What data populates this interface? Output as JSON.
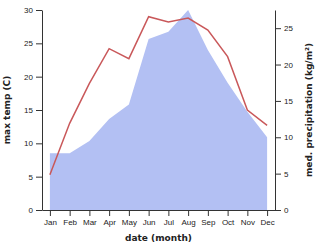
{
  "chart_data": {
    "type": "line",
    "x_label": "date (month)",
    "y_label": "max temp (C)",
    "y2_label": "med. precipitation (kg/m²)",
    "categories": [
      "Jan",
      "Feb",
      "Mar",
      "Apr",
      "May",
      "Jun",
      "Jul",
      "Aug",
      "Sep",
      "Oct",
      "Nov",
      "Dec"
    ],
    "series": [
      {
        "type": "area",
        "axis": "y2",
        "color": "#b3c0f3",
        "values": [
          7.8,
          7.8,
          9.5,
          12.5,
          14.5,
          23.5,
          24.5,
          27.5,
          22,
          17.5,
          13.5,
          10
        ]
      },
      {
        "type": "line",
        "color": "#c9585a",
        "values": [
          5.3,
          13,
          19,
          24.2,
          22.7,
          29,
          28.2,
          28.8,
          27,
          23,
          15,
          12.7
        ]
      }
    ],
    "ylim": [
      0,
      30
    ],
    "yticks": [
      0,
      5,
      10,
      15,
      20,
      25,
      30
    ],
    "y2lim": [
      0,
      27.5
    ],
    "y2ticks": [
      0,
      5,
      10,
      15,
      20,
      25
    ]
  }
}
